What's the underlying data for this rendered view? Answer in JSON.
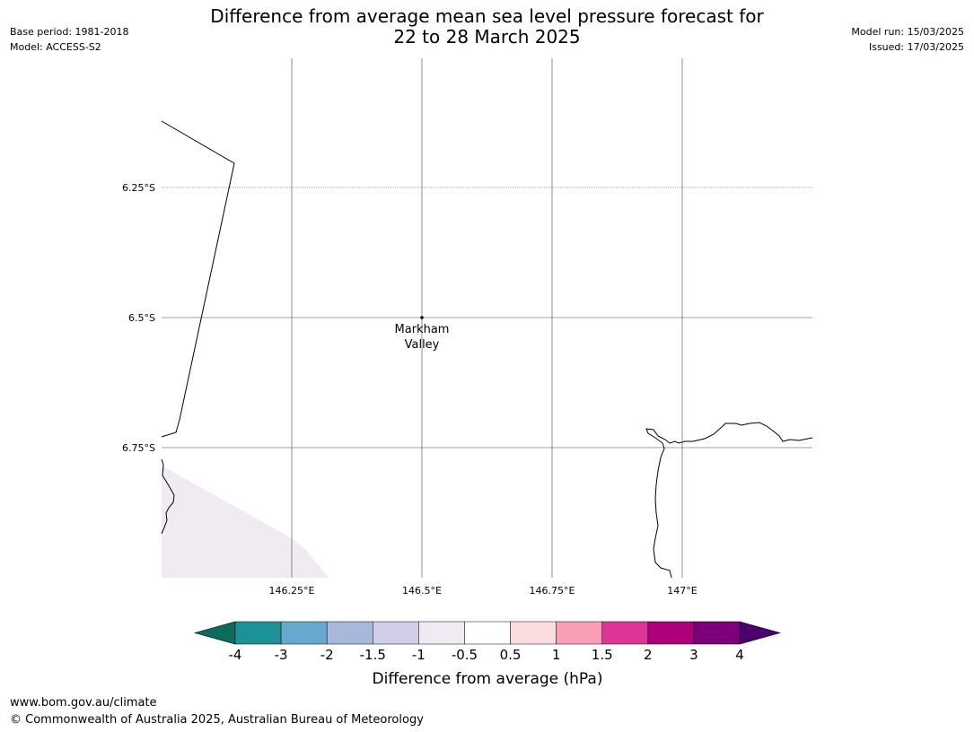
{
  "header": {
    "base_period": "Base period: 1981-2018",
    "model": "Model: ACCESS-S2",
    "model_run": "Model run: 15/03/2025",
    "issued": "Issued: 17/03/2025",
    "title_line1": "Difference from average mean sea level pressure forecast for",
    "title_line2": "22 to 28 March 2025"
  },
  "map": {
    "lat_labels": [
      "6.25°S",
      "6.5°S",
      "6.75°S"
    ],
    "lon_labels": [
      "146.25°E",
      "146.5°E",
      "146.75°E",
      "147°E"
    ],
    "place": {
      "name_line1": "Markham",
      "name_line2": "Valley"
    },
    "shaded_region_category": "-1 to -0.5",
    "shaded_region_color": "#f0ebf3"
  },
  "colorbar": {
    "label": "Difference from average (hPa)",
    "ticks": [
      "-4",
      "-3",
      "-2",
      "-1.5",
      "-1",
      "-0.5",
      "0.5",
      "1",
      "1.5",
      "2",
      "3",
      "4"
    ],
    "low_extend_color": "#0b6b5c",
    "high_extend_color": "#4b006e",
    "colors": [
      "#1c9196",
      "#67a8cf",
      "#a7b9db",
      "#d0cfe7",
      "#f0ebf3",
      "#ffffff",
      "#fddcdd",
      "#f89fb6",
      "#dc3597",
      "#ab0079",
      "#7b007a"
    ]
  },
  "footer": {
    "url": "www.bom.gov.au/climate",
    "copyright": "© Commonwealth of Australia 2025, Australian Bureau of Meteorology"
  }
}
